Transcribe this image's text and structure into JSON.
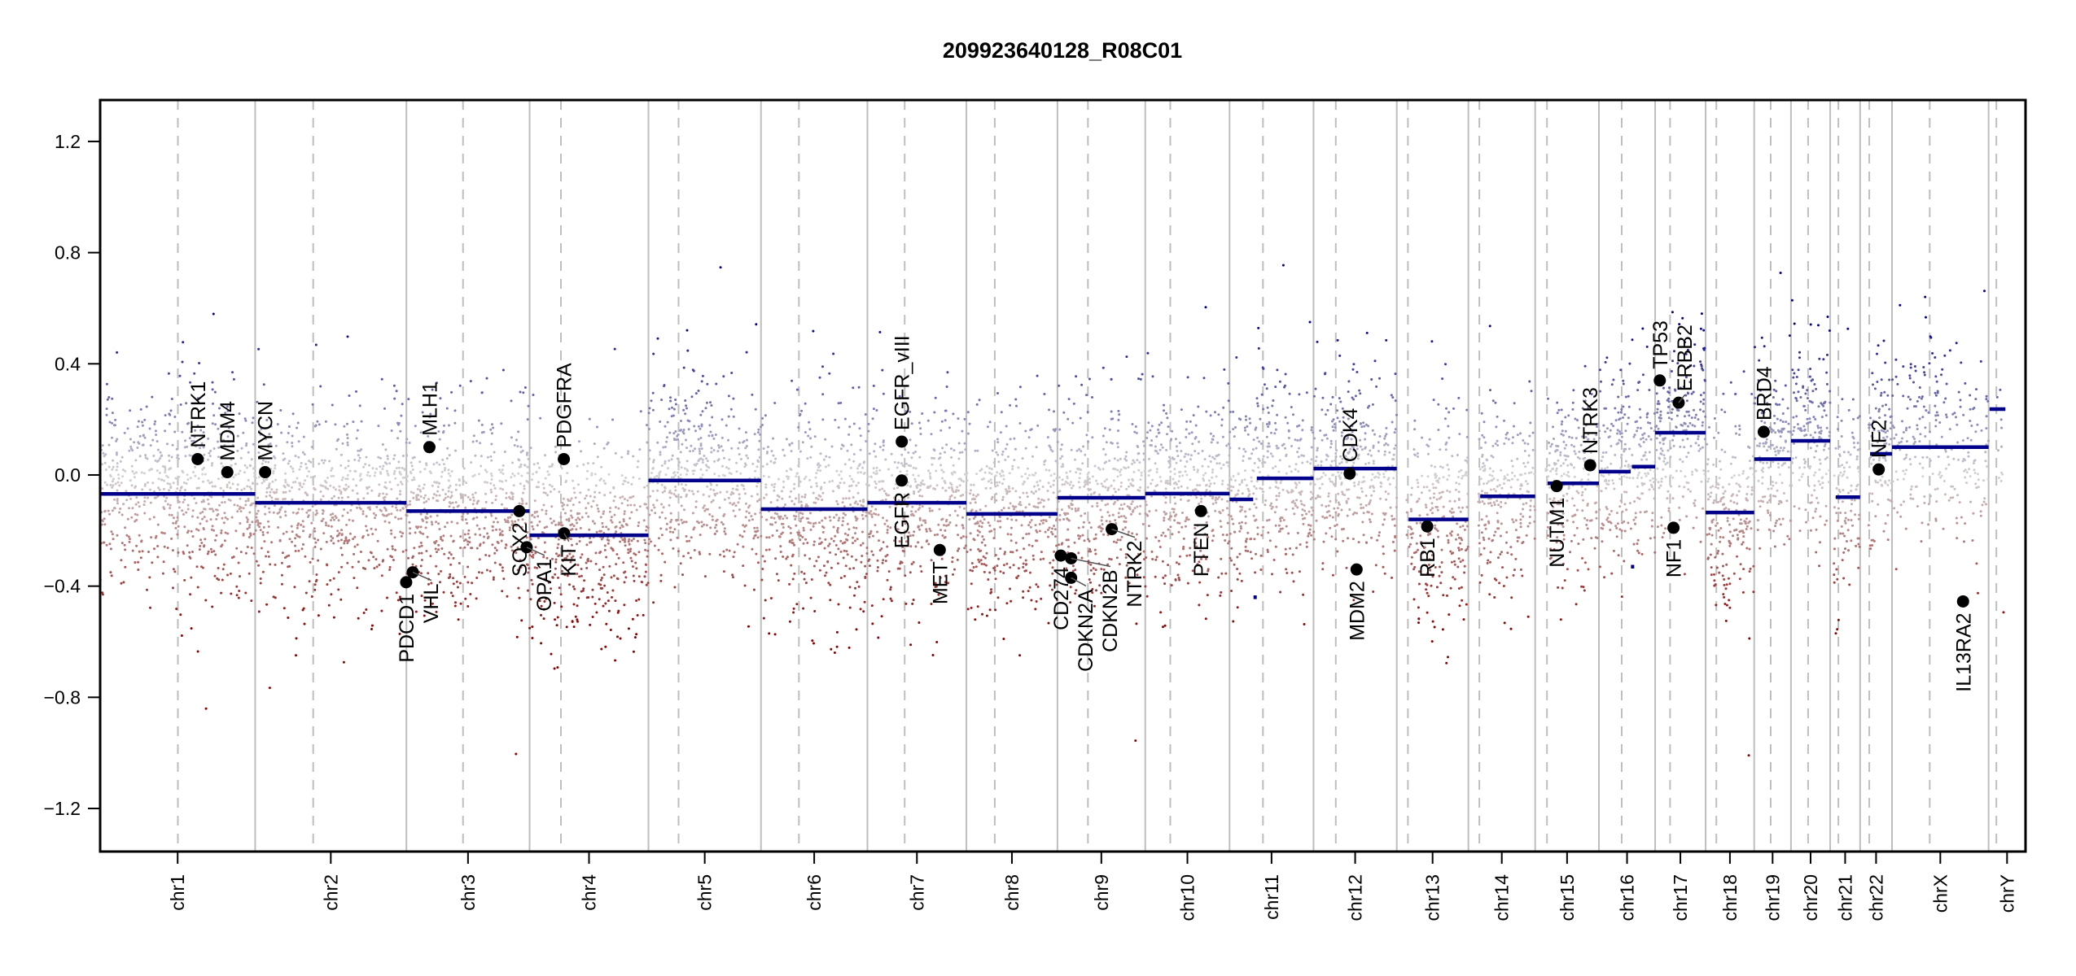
{
  "chart_data": {
    "type": "scatter",
    "title": "209923640128_R08C01",
    "xlabel": "",
    "ylabel": "",
    "ylim": [
      -1.355,
      1.349
    ],
    "y_ticks": [
      "-1.2",
      "-0.8",
      "-0.4",
      "0.0",
      "0.4",
      "0.8",
      "1.2"
    ],
    "grid": false,
    "colors": {
      "loss": "#8b0000",
      "neutral": "#d3d3d3",
      "gain": "#00008b",
      "segment": "#00008b",
      "chrom_separator": "#bebebe",
      "gene_point": "#000000"
    },
    "chromosomes": [
      {
        "name": "chr1",
        "length_mb": 249.25,
        "centromere_mb": 125.0
      },
      {
        "name": "chr2",
        "length_mb": 243.2,
        "centromere_mb": 93.3
      },
      {
        "name": "chr3",
        "length_mb": 198.02,
        "centromere_mb": 91.0
      },
      {
        "name": "chr4",
        "length_mb": 191.15,
        "centromere_mb": 50.4
      },
      {
        "name": "chr5",
        "length_mb": 180.92,
        "centromere_mb": 48.4
      },
      {
        "name": "chr6",
        "length_mb": 171.12,
        "centromere_mb": 61.0
      },
      {
        "name": "chr7",
        "length_mb": 159.14,
        "centromere_mb": 59.9
      },
      {
        "name": "chr8",
        "length_mb": 146.36,
        "centromere_mb": 45.6
      },
      {
        "name": "chr9",
        "length_mb": 141.21,
        "centromere_mb": 49.0
      },
      {
        "name": "chr10",
        "length_mb": 135.53,
        "centromere_mb": 40.2
      },
      {
        "name": "chr11",
        "length_mb": 135.01,
        "centromere_mb": 53.7
      },
      {
        "name": "chr12",
        "length_mb": 133.85,
        "centromere_mb": 35.8
      },
      {
        "name": "chr13",
        "length_mb": 115.17,
        "centromere_mb": 17.9
      },
      {
        "name": "chr14",
        "length_mb": 107.35,
        "centromere_mb": 17.6
      },
      {
        "name": "chr15",
        "length_mb": 102.53,
        "centromere_mb": 19.0
      },
      {
        "name": "chr16",
        "length_mb": 90.35,
        "centromere_mb": 36.6
      },
      {
        "name": "chr17",
        "length_mb": 81.2,
        "centromere_mb": 24.0
      },
      {
        "name": "chr18",
        "length_mb": 78.08,
        "centromere_mb": 17.2
      },
      {
        "name": "chr19",
        "length_mb": 59.13,
        "centromere_mb": 26.5
      },
      {
        "name": "chr20",
        "length_mb": 63.03,
        "centromere_mb": 27.5
      },
      {
        "name": "chr21",
        "length_mb": 48.13,
        "centromere_mb": 13.2
      },
      {
        "name": "chr22",
        "length_mb": 51.3,
        "centromere_mb": 14.7
      },
      {
        "name": "chrX",
        "length_mb": 155.27,
        "centromere_mb": 60.6
      },
      {
        "name": "chrY",
        "length_mb": 59.37,
        "centromere_mb": 12.5
      }
    ],
    "segments": [
      {
        "chr": "chr1",
        "start_mb": 0,
        "end_mb": 249.25,
        "value": -0.068
      },
      {
        "chr": "chr2",
        "start_mb": 0,
        "end_mb": 243.2,
        "value": -0.1
      },
      {
        "chr": "chr3",
        "start_mb": 0,
        "end_mb": 198.02,
        "value": -0.13
      },
      {
        "chr": "chr4",
        "start_mb": 0,
        "end_mb": 191.15,
        "value": -0.217
      },
      {
        "chr": "chr5",
        "start_mb": 0,
        "end_mb": 180.92,
        "value": -0.02
      },
      {
        "chr": "chr6",
        "start_mb": 0,
        "end_mb": 171.12,
        "value": -0.123
      },
      {
        "chr": "chr7",
        "start_mb": 0,
        "end_mb": 159.14,
        "value": -0.1
      },
      {
        "chr": "chr8",
        "start_mb": 0,
        "end_mb": 146.36,
        "value": -0.14
      },
      {
        "chr": "chr9",
        "start_mb": 0,
        "end_mb": 141.21,
        "value": -0.082
      },
      {
        "chr": "chr10",
        "start_mb": 0,
        "end_mb": 135.53,
        "value": -0.067
      },
      {
        "chr": "chr11",
        "start_mb": 0,
        "end_mb": 38,
        "value": -0.088
      },
      {
        "chr": "chr11",
        "start_mb": 38.5,
        "end_mb": 40,
        "value": -0.44
      },
      {
        "chr": "chr11",
        "start_mb": 43.8,
        "end_mb": 135.01,
        "value": -0.012
      },
      {
        "chr": "chr12",
        "start_mb": 0,
        "end_mb": 133.85,
        "value": 0.023
      },
      {
        "chr": "chr13",
        "start_mb": 19,
        "end_mb": 115.17,
        "value": -0.16
      },
      {
        "chr": "chr14",
        "start_mb": 19,
        "end_mb": 107.35,
        "value": -0.077
      },
      {
        "chr": "chr15",
        "start_mb": 20,
        "end_mb": 102.53,
        "value": -0.03
      },
      {
        "chr": "chr16",
        "start_mb": 0,
        "end_mb": 51,
        "value": 0.012
      },
      {
        "chr": "chr16",
        "start_mb": 51.5,
        "end_mb": 52.5,
        "value": -0.33
      },
      {
        "chr": "chr16",
        "start_mb": 53,
        "end_mb": 90.35,
        "value": 0.03
      },
      {
        "chr": "chr17",
        "start_mb": 0,
        "end_mb": 81.2,
        "value": 0.152
      },
      {
        "chr": "chr18",
        "start_mb": 0,
        "end_mb": 78.08,
        "value": -0.135
      },
      {
        "chr": "chr19",
        "start_mb": 0,
        "end_mb": 59.13,
        "value": 0.057
      },
      {
        "chr": "chr20",
        "start_mb": 0,
        "end_mb": 63.03,
        "value": 0.123
      },
      {
        "chr": "chr21",
        "start_mb": 9,
        "end_mb": 48.13,
        "value": -0.08
      },
      {
        "chr": "chr22",
        "start_mb": 16,
        "end_mb": 51.3,
        "value": 0.076
      },
      {
        "chr": "chrX",
        "start_mb": 0,
        "end_mb": 155.27,
        "value": 0.1
      },
      {
        "chr": "chrY",
        "start_mb": 1.5,
        "end_mb": 27,
        "value": 0.237
      }
    ],
    "genes": [
      {
        "name": "NTRK1",
        "chr": "chr1",
        "pos_mb": 156.8,
        "value": 0.057
      },
      {
        "name": "MDM4",
        "chr": "chr1",
        "pos_mb": 204.5,
        "value": 0.01
      },
      {
        "name": "MYCN",
        "chr": "chr2",
        "pos_mb": 16.0,
        "value": 0.01
      },
      {
        "name": "PDCD1",
        "chr": "chr2",
        "pos_mb": 242.8,
        "value": -0.386
      },
      {
        "name": "VHL",
        "chr": "chr3",
        "pos_mb": 10.2,
        "value": -0.35
      },
      {
        "name": "MLH1",
        "chr": "chr3",
        "pos_mb": 37.0,
        "value": 0.1
      },
      {
        "name": "SOX2",
        "chr": "chr3",
        "pos_mb": 181.4,
        "value": -0.13
      },
      {
        "name": "OPA1",
        "chr": "chr3",
        "pos_mb": 193.3,
        "value": -0.26
      },
      {
        "name": "PDGFRA",
        "chr": "chr4",
        "pos_mb": 55.1,
        "value": 0.057
      },
      {
        "name": "KIT",
        "chr": "chr4",
        "pos_mb": 55.5,
        "value": -0.21
      },
      {
        "name": "EGFR_vIII",
        "chr": "chr7",
        "pos_mb": 55.2,
        "value": 0.12
      },
      {
        "name": "EGFR",
        "chr": "chr7",
        "pos_mb": 55.1,
        "value": -0.02
      },
      {
        "name": "MET",
        "chr": "chr7",
        "pos_mb": 116.3,
        "value": -0.27
      },
      {
        "name": "CD274",
        "chr": "chr9",
        "pos_mb": 5.4,
        "value": -0.29
      },
      {
        "name": "CDKN2A",
        "chr": "chr9",
        "pos_mb": 21.97,
        "value": -0.37
      },
      {
        "name": "CDKN2B",
        "chr": "chr9",
        "pos_mb": 22.0,
        "value": -0.3
      },
      {
        "name": "NTRK2",
        "chr": "chr9",
        "pos_mb": 87.3,
        "value": -0.195
      },
      {
        "name": "PTEN",
        "chr": "chr10",
        "pos_mb": 89.6,
        "value": -0.13
      },
      {
        "name": "CDK4",
        "chr": "chr12",
        "pos_mb": 58.1,
        "value": 0.005
      },
      {
        "name": "MDM2",
        "chr": "chr12",
        "pos_mb": 69.2,
        "value": -0.34
      },
      {
        "name": "RB1",
        "chr": "chr13",
        "pos_mb": 48.9,
        "value": -0.185
      },
      {
        "name": "NUTM1",
        "chr": "chr15",
        "pos_mb": 34.6,
        "value": -0.04
      },
      {
        "name": "NTRK3",
        "chr": "chr15",
        "pos_mb": 88.4,
        "value": 0.035
      },
      {
        "name": "TP53",
        "chr": "chr17",
        "pos_mb": 7.5,
        "value": 0.34
      },
      {
        "name": "NF1",
        "chr": "chr17",
        "pos_mb": 29.5,
        "value": -0.19
      },
      {
        "name": "ERBB2",
        "chr": "chr17",
        "pos_mb": 37.8,
        "value": 0.26
      },
      {
        "name": "BRD4",
        "chr": "chr19",
        "pos_mb": 15.3,
        "value": 0.155
      },
      {
        "name": "NF2",
        "chr": "chr22",
        "pos_mb": 29.9,
        "value": 0.02
      },
      {
        "name": "IL13RA2",
        "chr": "chrX",
        "pos_mb": 114.2,
        "value": -0.455
      }
    ]
  }
}
